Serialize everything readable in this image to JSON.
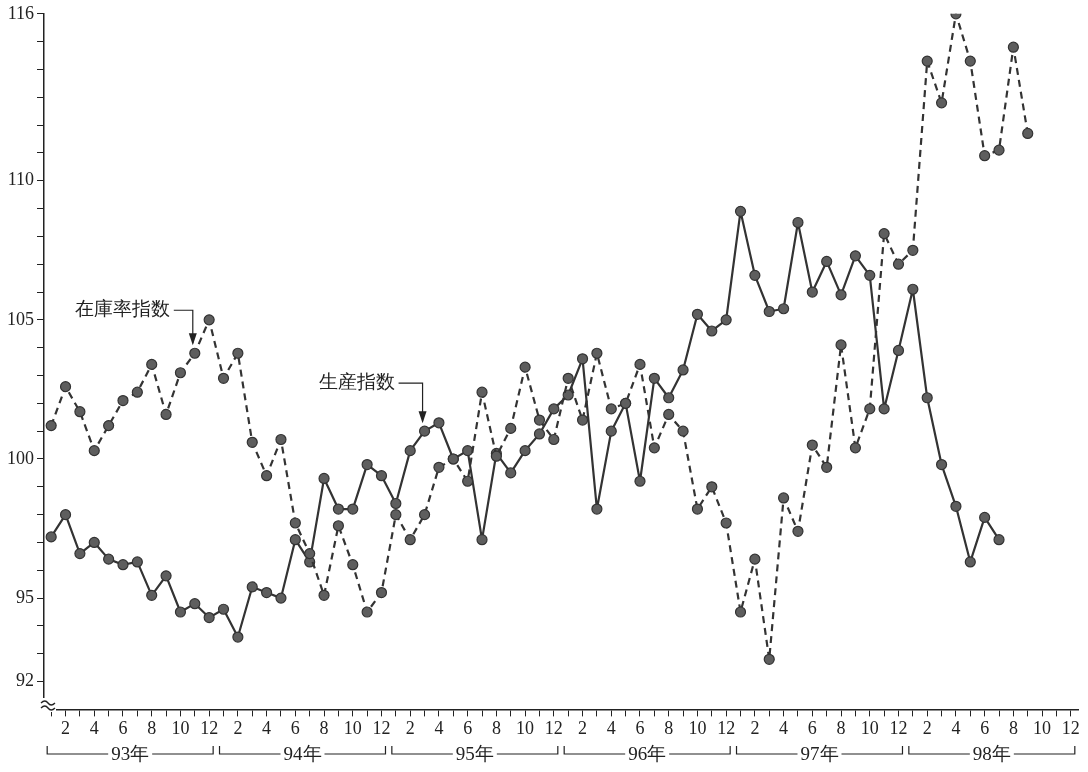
{
  "chart_data": {
    "type": "line",
    "categories": [
      null,
      "2",
      null,
      "4",
      null,
      "6",
      null,
      "8",
      null,
      "10",
      null,
      "12",
      null,
      "2",
      null,
      "4",
      null,
      "6",
      null,
      "8",
      null,
      "10",
      null,
      "12",
      null,
      "2",
      null,
      "4",
      null,
      "6",
      null,
      "8",
      null,
      "10",
      null,
      "12",
      null,
      "2",
      null,
      "4",
      null,
      "6",
      null,
      "8",
      null,
      "10",
      null,
      "12",
      null,
      "2",
      null,
      "4",
      null,
      "6",
      null,
      "8",
      null,
      "10",
      null,
      "12",
      null,
      "2",
      null,
      "4",
      null,
      "6",
      null,
      "8",
      null,
      "10",
      null,
      "12"
    ],
    "series": [
      {
        "name": "在庫率指数",
        "color": "#333333",
        "line_style": "dashed",
        "values": [
          101.2,
          102.6,
          101.7,
          100.3,
          101.2,
          102.1,
          102.4,
          103.4,
          101.6,
          103.1,
          103.8,
          105.0,
          102.9,
          103.8,
          100.6,
          99.4,
          100.7,
          97.7,
          96.6,
          95.1,
          97.6,
          96.2,
          94.5,
          95.2,
          98.0,
          97.1,
          98.0,
          99.7,
          100.0,
          99.2,
          102.4,
          100.1,
          101.1,
          103.3,
          101.4,
          100.7,
          102.9,
          101.4,
          103.8,
          101.8,
          102.0,
          103.4,
          100.4,
          101.6,
          101.0,
          98.2,
          99.0,
          97.7,
          94.5,
          96.4,
          92.8,
          98.6,
          97.4,
          100.5,
          99.7,
          104.1,
          100.4,
          101.8,
          108.1,
          107.0,
          107.5,
          114.3,
          112.8,
          116.0,
          114.3,
          110.9,
          111.1,
          114.8,
          111.7,
          null,
          null,
          null
        ]
      },
      {
        "name": "生産指数",
        "color": "#333333",
        "line_style": "solid",
        "values": [
          97.2,
          98.0,
          96.6,
          97.0,
          96.4,
          96.2,
          96.3,
          95.1,
          95.8,
          94.5,
          94.8,
          94.3,
          94.6,
          93.6,
          95.4,
          95.2,
          95.0,
          97.1,
          96.3,
          99.3,
          98.2,
          98.2,
          99.8,
          99.4,
          98.4,
          100.3,
          101.0,
          101.3,
          100.0,
          100.3,
          97.1,
          100.2,
          99.5,
          100.3,
          100.9,
          101.8,
          102.3,
          103.6,
          98.2,
          101.0,
          102.0,
          99.2,
          102.9,
          102.2,
          103.2,
          105.2,
          104.6,
          105.0,
          108.9,
          106.6,
          105.3,
          105.4,
          108.5,
          106.0,
          107.1,
          105.9,
          107.3,
          106.6,
          101.8,
          103.9,
          106.1,
          102.2,
          99.8,
          98.3,
          96.3,
          97.9,
          97.1,
          null,
          null,
          null,
          null,
          null
        ]
      }
    ],
    "annotations": [
      "93年",
      "94年",
      "95年",
      "96年",
      "97年",
      "98年"
    ],
    "ylim": [
      91,
      116
    ],
    "yticks": [
      92,
      {
        "value": 93,
        "label": null
      },
      {
        "value": 94,
        "label": null
      },
      95,
      {
        "value": 96,
        "label": null
      },
      {
        "value": 97,
        "label": null
      },
      {
        "value": 98,
        "label": null
      },
      {
        "value": 99,
        "label": null
      },
      100,
      {
        "value": 101,
        "label": null
      },
      {
        "value": 102,
        "label": null
      },
      {
        "value": 103,
        "label": null
      },
      {
        "value": 104,
        "label": null
      },
      105,
      {
        "value": 106,
        "label": null
      },
      {
        "value": 107,
        "label": null
      },
      {
        "value": 108,
        "label": null
      },
      {
        "value": 109,
        "label": null
      },
      110,
      {
        "value": 111,
        "label": null
      },
      {
        "value": 112,
        "label": null
      },
      {
        "value": 113,
        "label": null
      },
      {
        "value": 114,
        "label": null
      },
      {
        "value": 115,
        "label": null
      },
      116
    ],
    "grid": false,
    "legend": false,
    "marker": "circle"
  }
}
